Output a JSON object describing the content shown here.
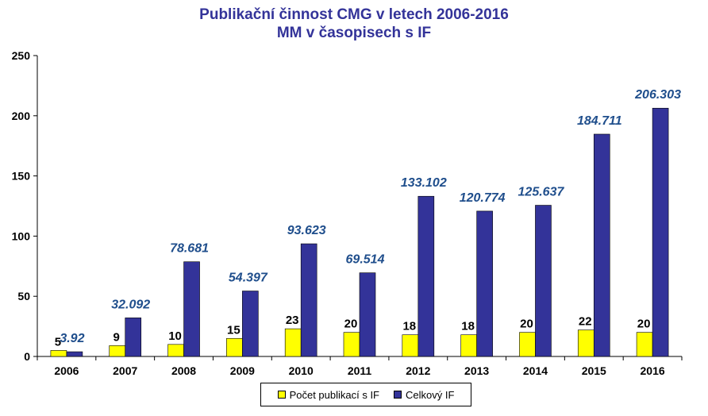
{
  "chart_data": {
    "type": "bar",
    "title": "Publikační činnost CMG v letech 2006-2016",
    "subtitle": "MM v časopisech s IF",
    "categories": [
      "2006",
      "2007",
      "2008",
      "2009",
      "2010",
      "2011",
      "2012",
      "2013",
      "2014",
      "2015",
      "2016"
    ],
    "series": [
      {
        "name": "Počet publikací s IF",
        "color": "#ffff00",
        "values": [
          5,
          9,
          10,
          15,
          23,
          20,
          18,
          18,
          20,
          22,
          20
        ],
        "labels": [
          "5",
          "9",
          "10",
          "15",
          "23",
          "20",
          "18",
          "18",
          "20",
          "22",
          "20"
        ]
      },
      {
        "name": "Celkový IF",
        "color": "#333399",
        "values": [
          3.92,
          32.092,
          78.681,
          54.397,
          93.623,
          69.514,
          133.102,
          120.774,
          125.637,
          184.711,
          206.303
        ],
        "labels": [
          "3.92",
          "32.092",
          "78.681",
          "54.397",
          "93.623",
          "69.514",
          "133.102",
          "120.774",
          "125.637",
          "184.711",
          "206.303"
        ]
      }
    ],
    "ylim": [
      0,
      250
    ],
    "yticks": [
      "0",
      "50",
      "100",
      "150",
      "200",
      "250"
    ],
    "grid": false,
    "legend_position": "bottom"
  }
}
